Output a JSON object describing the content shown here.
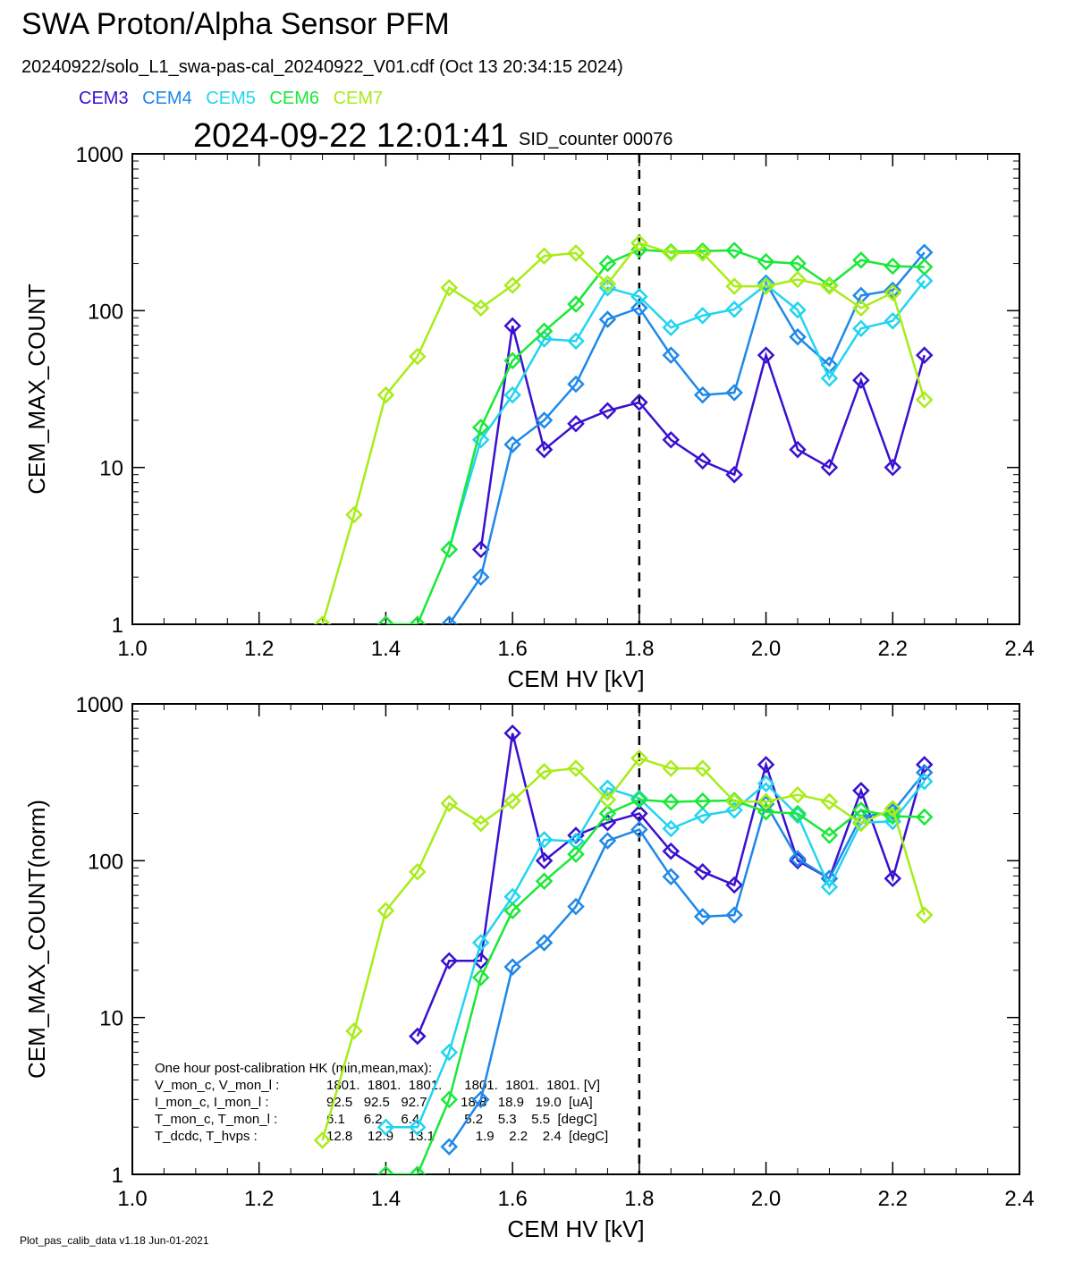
{
  "header": {
    "title": "SWA Proton/Alpha Sensor PFM",
    "file_line": "20240922/solo_L1_swa-pas-cal_20240922_V01.cdf  (Oct 13 20:34:15 2024)",
    "datetime": "2024-09-22 12:01:41",
    "sid": "SID_counter 00076"
  },
  "footer": "Plot_pas_calib_data v1.18 Jun-01-2021",
  "legend": [
    {
      "name": "CEM3",
      "color": "#3a10d0"
    },
    {
      "name": "CEM4",
      "color": "#1f88e8"
    },
    {
      "name": "CEM5",
      "color": "#22d4f0"
    },
    {
      "name": "CEM6",
      "color": "#1ae838"
    },
    {
      "name": "CEM7",
      "color": "#a8ec18"
    }
  ],
  "hk": {
    "title": "One hour post-calibration HK (min,mean,max):",
    "rows": [
      {
        "label": "V_mon_c, V_mon_l :",
        "values": "1801.  1801.  1801.      1801.  1801.  1801. [V]"
      },
      {
        "label": "I_mon_c,  I_mon_l :",
        "values": "92.5   92.5   92.7         18.8   18.9   19.0  [uA]"
      },
      {
        "label": "T_mon_c, T_mon_l :",
        "values": "6.1     6.2     6.4            5.2    5.3    5.5  [degC]"
      },
      {
        "label": "T_dcdc,    T_hvps :",
        "values": "12.8    12.9    13.1           1.9    2.2    2.4  [degC]"
      }
    ]
  },
  "chart_data": [
    {
      "type": "line",
      "xlabel": "CEM HV [kV]",
      "ylabel": "CEM_MAX_COUNT",
      "xlim": [
        1.0,
        2.4
      ],
      "ylim": [
        1,
        1000
      ],
      "yscale": "log",
      "x_ticks": [
        "1.0",
        "1.2",
        "1.4",
        "1.6",
        "1.8",
        "2.0",
        "2.2",
        "2.4"
      ],
      "y_ticks": [
        "1",
        "10",
        "100",
        "1000"
      ],
      "vline_x": 1.8,
      "x": [
        1.3,
        1.35,
        1.4,
        1.45,
        1.5,
        1.55,
        1.6,
        1.65,
        1.7,
        1.75,
        1.8,
        1.85,
        1.9,
        1.95,
        2.0,
        2.05,
        2.1,
        2.15,
        2.2,
        2.25
      ],
      "series": [
        {
          "name": "CEM3",
          "color": "#3a10d0",
          "values": [
            null,
            null,
            1,
            null,
            null,
            3,
            80,
            13,
            19,
            23,
            26,
            15,
            11,
            9,
            52,
            13,
            10,
            36,
            10,
            52
          ]
        },
        {
          "name": "CEM4",
          "color": "#1f88e8",
          "values": [
            null,
            null,
            null,
            null,
            1,
            2,
            14,
            20,
            34,
            88,
            104,
            52,
            29,
            30,
            150,
            68,
            45,
            125,
            135,
            235
          ]
        },
        {
          "name": "CEM5",
          "color": "#22d4f0",
          "values": [
            null,
            null,
            null,
            null,
            3,
            15,
            29,
            66,
            64,
            140,
            123,
            78,
            93,
            102,
            146,
            101,
            37,
            77,
            86,
            155
          ]
        },
        {
          "name": "CEM6",
          "color": "#1ae838",
          "values": [
            null,
            null,
            1,
            1,
            3,
            18,
            48,
            74,
            110,
            200,
            245,
            237,
            240,
            242,
            205,
            200,
            145,
            210,
            192,
            190
          ]
        },
        {
          "name": "CEM7",
          "color": "#a8ec18",
          "values": [
            1,
            5,
            29,
            51,
            140,
            104,
            145,
            223,
            233,
            148,
            270,
            233,
            233,
            143,
            143,
            158,
            143,
            104,
            130,
            27
          ]
        }
      ]
    },
    {
      "type": "line",
      "xlabel": "CEM HV [kV]",
      "ylabel": "CEM_MAX_COUNT(norm)",
      "xlim": [
        1.0,
        2.4
      ],
      "ylim": [
        1,
        1000
      ],
      "yscale": "log",
      "x_ticks": [
        "1.0",
        "1.2",
        "1.4",
        "1.6",
        "1.8",
        "2.0",
        "2.2",
        "2.4"
      ],
      "y_ticks": [
        "1",
        "10",
        "100",
        "1000"
      ],
      "vline_x": 1.8,
      "x": [
        1.3,
        1.35,
        1.4,
        1.45,
        1.5,
        1.55,
        1.6,
        1.65,
        1.7,
        1.75,
        1.8,
        1.85,
        1.9,
        1.95,
        2.0,
        2.05,
        2.1,
        2.15,
        2.2,
        2.25
      ],
      "series": [
        {
          "name": "CEM3",
          "color": "#3a10d0",
          "values": [
            null,
            null,
            null,
            7.6,
            23,
            23,
            650,
            100,
            145,
            175,
            200,
            115,
            85,
            70,
            410,
            100,
            77,
            280,
            77,
            410
          ]
        },
        {
          "name": "CEM4",
          "color": "#1f88e8",
          "values": [
            null,
            null,
            null,
            null,
            1.5,
            3,
            21,
            30,
            51,
            134,
            158,
            79,
            44,
            45,
            230,
            103,
            77,
            190,
            205,
            365
          ]
        },
        {
          "name": "CEM5",
          "color": "#22d4f0",
          "values": [
            null,
            null,
            2,
            2,
            6,
            30,
            59,
            136,
            133,
            290,
            250,
            160,
            194,
            210,
            310,
            195,
            68,
            175,
            178,
            320
          ]
        },
        {
          "name": "CEM6",
          "color": "#1ae838",
          "values": [
            null,
            null,
            1,
            1,
            3,
            18,
            48,
            74,
            110,
            200,
            245,
            237,
            240,
            242,
            205,
            200,
            145,
            210,
            192,
            190
          ]
        },
        {
          "name": "CEM7",
          "color": "#a8ec18",
          "values": [
            1.65,
            8.2,
            48,
            85,
            232,
            173,
            240,
            370,
            388,
            245,
            450,
            388,
            388,
            238,
            238,
            263,
            238,
            173,
            215,
            45
          ]
        }
      ]
    }
  ]
}
